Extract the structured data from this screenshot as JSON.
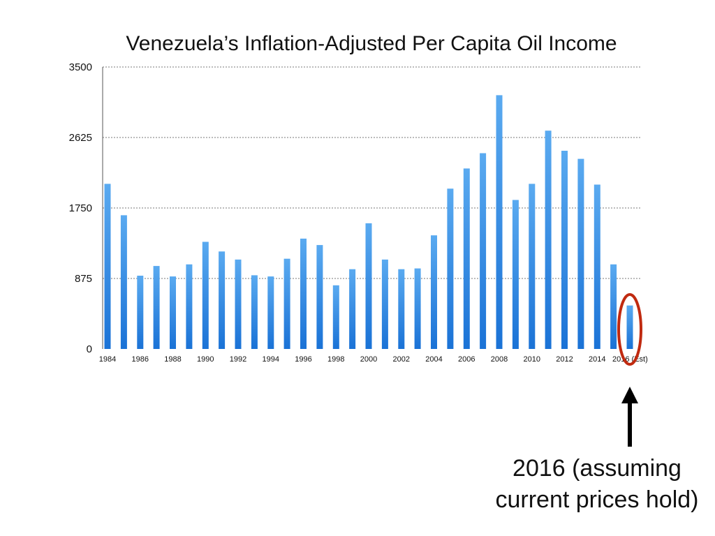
{
  "chart_data": {
    "type": "bar",
    "title": "Venezuela’s Inflation-Adjusted Per Capita Oil Income",
    "xlabel": "",
    "ylabel": "",
    "ylim": [
      0,
      3500
    ],
    "yticks": [
      0,
      875,
      1750,
      2625,
      3500
    ],
    "grid": true,
    "categories": [
      "1984",
      "1985",
      "1986",
      "1987",
      "1988",
      "1989",
      "1990",
      "1991",
      "1992",
      "1993",
      "1994",
      "1995",
      "1996",
      "1997",
      "1998",
      "1999",
      "2000",
      "2001",
      "2002",
      "2003",
      "2004",
      "2005",
      "2006",
      "2007",
      "2008",
      "2009",
      "2010",
      "2011",
      "2012",
      "2013",
      "2014",
      "2015",
      "2016"
    ],
    "xtick_labels": [
      "1984",
      "",
      "1986",
      "",
      "1988",
      "",
      "1990",
      "",
      "1992",
      "",
      "1994",
      "",
      "1996",
      "",
      "1998",
      "",
      "2000",
      "",
      "2002",
      "",
      "2004",
      "",
      "2006",
      "",
      "2008",
      "",
      "2010",
      "",
      "2012",
      "",
      "2014",
      "",
      "2016 (Est)"
    ],
    "values": [
      2050,
      1660,
      910,
      1030,
      900,
      1050,
      1330,
      1210,
      1110,
      915,
      900,
      1120,
      1370,
      1290,
      790,
      990,
      1560,
      1110,
      990,
      1000,
      1410,
      1990,
      2240,
      2430,
      3150,
      1850,
      2050,
      2710,
      2460,
      2360,
      2040,
      1050,
      540
    ],
    "colors": {
      "bar_top": "#5aaaf0",
      "bar_bottom": "#1a72d6",
      "grid": "#777777",
      "highlight": "#c02a10",
      "arrow": "#000000"
    },
    "annotation": {
      "lines": [
        "2016 (assuming",
        "current prices hold)"
      ],
      "highlighted_category": "2016"
    }
  }
}
